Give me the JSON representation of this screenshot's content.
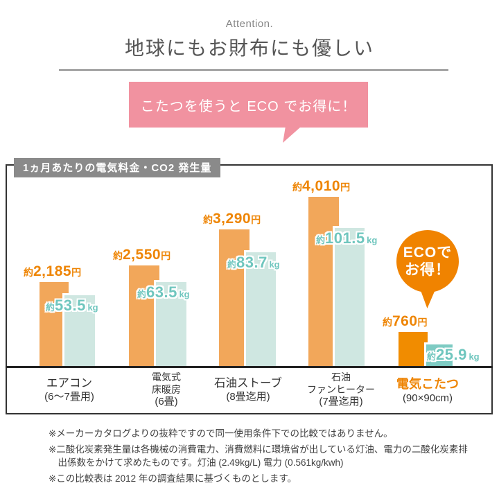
{
  "header": {
    "eyebrow": "Attention.",
    "title": "地球にもお財布にも優しい"
  },
  "speech_bubble": {
    "text": "こたつを使うと ECO でお得に！"
  },
  "chart": {
    "title_badge": "1ヵ月あたりの電気料金・CO2 発生量",
    "eco_badge": {
      "line1": "ECOで",
      "line2": "お得！"
    },
    "groups": [
      {
        "label_lines": [
          "エアコン",
          "(6～7畳用)"
        ],
        "cost": {
          "prefix": "約",
          "value": "2,185",
          "unit": "円"
        },
        "co2": {
          "prefix": "約",
          "value": "53.5",
          "unit": "kg"
        }
      },
      {
        "label_lines": [
          "電気式",
          "床暖房",
          "(6畳)"
        ],
        "cost": {
          "prefix": "約",
          "value": "2,550",
          "unit": "円"
        },
        "co2": {
          "prefix": "約",
          "value": "63.5",
          "unit": "kg"
        }
      },
      {
        "label_lines": [
          "石油ストーブ",
          "(8畳迄用)"
        ],
        "cost": {
          "prefix": "約",
          "value": "3,290",
          "unit": "円"
        },
        "co2": {
          "prefix": "約",
          "value": "83.7",
          "unit": "kg"
        }
      },
      {
        "label_lines": [
          "石油",
          "ファンヒーター",
          "(7畳迄用)"
        ],
        "cost": {
          "prefix": "約",
          "value": "4,010",
          "unit": "円"
        },
        "co2": {
          "prefix": "約",
          "value": "101.5",
          "unit": "kg"
        }
      },
      {
        "label_lines": [
          "電気こたつ",
          "(90×90cm)"
        ],
        "cost": {
          "prefix": "約",
          "value": "760",
          "unit": "円"
        },
        "co2": {
          "prefix": "約",
          "value": "25.9",
          "unit": "kg"
        },
        "highlight": true
      }
    ]
  },
  "chart_data": {
    "type": "bar",
    "title": "1ヵ月あたりの電気料金・CO2 発生量",
    "categories": [
      "エアコン(6～7畳用)",
      "電気式床暖房(6畳)",
      "石油ストーブ(8畳迄用)",
      "石油ファンヒーター(7畳迄用)",
      "電気こたつ(90×90cm)"
    ],
    "series": [
      {
        "name": "電気料金",
        "unit": "円/月",
        "values": [
          2185,
          2550,
          3290,
          4010,
          760
        ]
      },
      {
        "name": "CO2発生量",
        "unit": "kg/月",
        "values": [
          53.5,
          63.5,
          83.7,
          101.5,
          25.9
        ]
      }
    ],
    "value_prefix": "約",
    "highlight_index": 4,
    "annotation": "ECOでお得！",
    "legend": "none",
    "grid": false,
    "ylim_cost": [
      0,
      4300
    ],
    "ylim_co2": [
      0,
      110
    ]
  },
  "notes": [
    "※メーカーカタログよりの抜粋ですので同一使用条件下での比較ではありません。",
    "※二酸化炭素発生量は各機械の消費電力、消費燃料に環境省が出している灯油、電力の二酸化炭素排出係数をかけて求めたものです。灯油 (2.49kg/L) 電力 (0.561kg/kwh)",
    "※この比較表は 2012 年の調査結果に基づくものとします。"
  ],
  "colors": {
    "cost_bar": "#f2a75a",
    "cost_bar_highlight": "#f18c00",
    "co2_bar": "#cfe7e1",
    "co2_bar_highlight": "#7ecbc3",
    "cost_label_text": "#ee8505",
    "co2_label_text": "#6fc6be",
    "bubble_pink": "#f192a0",
    "badge_orange": "#f08300",
    "title_badge_bg": "#8a8a8a",
    "category_highlight": "#ee8505"
  }
}
